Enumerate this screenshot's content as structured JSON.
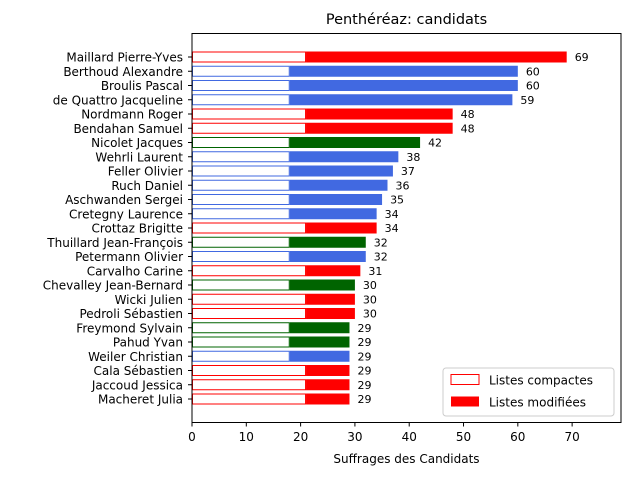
{
  "chart_data": {
    "type": "bar",
    "orientation": "horizontal",
    "title": "Penthéréaz: candidats",
    "xlabel": "Suffrages des Candidats",
    "ylabel": "",
    "xlim": [
      0,
      79
    ],
    "xticks": [
      0,
      10,
      20,
      30,
      40,
      50,
      60,
      70
    ],
    "grid": false,
    "legend_position": "bottom-right",
    "legend": [
      {
        "label": "Listes compactes",
        "style": "outline",
        "color": "#ff0000"
      },
      {
        "label": "Listes modifiées",
        "style": "filled",
        "color": "#ff0000"
      }
    ],
    "colors": {
      "red": "#ff0000",
      "blue": "#4169e1",
      "green": "#006400"
    },
    "candidates": [
      {
        "name": "Maillard Pierre-Yves",
        "total": 69,
        "compact": 21,
        "color": "red"
      },
      {
        "name": "Berthoud Alexandre",
        "total": 60,
        "compact": 18,
        "color": "blue"
      },
      {
        "name": "Broulis Pascal",
        "total": 60,
        "compact": 18,
        "color": "blue"
      },
      {
        "name": "de Quattro Jacqueline",
        "total": 59,
        "compact": 18,
        "color": "blue"
      },
      {
        "name": "Nordmann Roger",
        "total": 48,
        "compact": 21,
        "color": "red"
      },
      {
        "name": "Bendahan Samuel",
        "total": 48,
        "compact": 21,
        "color": "red"
      },
      {
        "name": "Nicolet Jacques",
        "total": 42,
        "compact": 18,
        "color": "green"
      },
      {
        "name": "Wehrli Laurent",
        "total": 38,
        "compact": 18,
        "color": "blue"
      },
      {
        "name": "Feller Olivier",
        "total": 37,
        "compact": 18,
        "color": "blue"
      },
      {
        "name": "Ruch Daniel",
        "total": 36,
        "compact": 18,
        "color": "blue"
      },
      {
        "name": "Aschwanden Sergei",
        "total": 35,
        "compact": 18,
        "color": "blue"
      },
      {
        "name": "Cretegny Laurence",
        "total": 34,
        "compact": 18,
        "color": "blue"
      },
      {
        "name": "Crottaz Brigitte",
        "total": 34,
        "compact": 21,
        "color": "red"
      },
      {
        "name": "Thuillard Jean-François",
        "total": 32,
        "compact": 18,
        "color": "green"
      },
      {
        "name": "Petermann Olivier",
        "total": 32,
        "compact": 18,
        "color": "blue"
      },
      {
        "name": "Carvalho Carine",
        "total": 31,
        "compact": 21,
        "color": "red"
      },
      {
        "name": "Chevalley Jean-Bernard",
        "total": 30,
        "compact": 18,
        "color": "green"
      },
      {
        "name": "Wicki Julien",
        "total": 30,
        "compact": 21,
        "color": "red"
      },
      {
        "name": "Pedroli Sébastien",
        "total": 30,
        "compact": 21,
        "color": "red"
      },
      {
        "name": "Freymond Sylvain",
        "total": 29,
        "compact": 18,
        "color": "green"
      },
      {
        "name": "Pahud Yvan",
        "total": 29,
        "compact": 18,
        "color": "green"
      },
      {
        "name": "Weiler Christian",
        "total": 29,
        "compact": 18,
        "color": "blue"
      },
      {
        "name": "Cala Sébastien",
        "total": 29,
        "compact": 21,
        "color": "red"
      },
      {
        "name": "Jaccoud Jessica",
        "total": 29,
        "compact": 21,
        "color": "red"
      },
      {
        "name": "Macheret Julia",
        "total": 29,
        "compact": 21,
        "color": "red"
      }
    ]
  }
}
